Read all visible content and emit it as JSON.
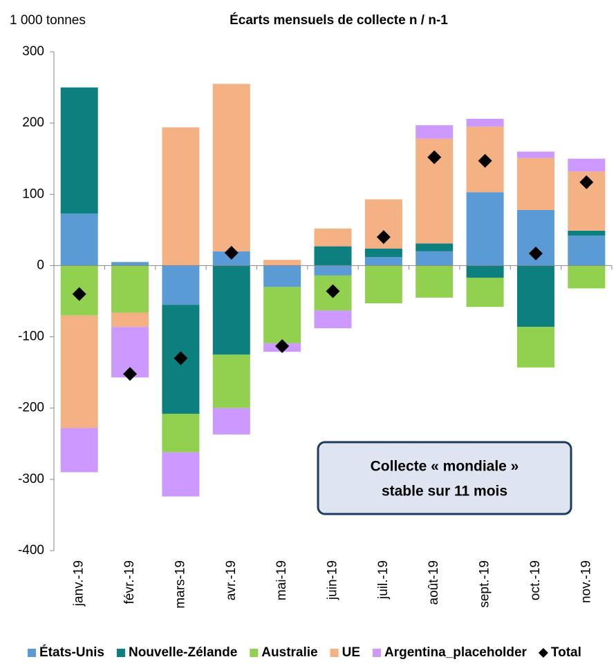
{
  "chart_data": {
    "type": "bar",
    "stacked": true,
    "title": "Écarts mensuels de collecte n / n-1",
    "y_label": "1 000 tonnes",
    "annotation": [
      "Collecte « mondiale »",
      "stable sur 11 mois"
    ],
    "categories": [
      "janv.-19",
      "févr.-19",
      "mars-19",
      "avr.-19",
      "mai-19",
      "juin-19",
      "juil.-19",
      "août-19",
      "sept.-19",
      "oct.-19",
      "nov.-19"
    ],
    "series": [
      {
        "name": "États-Unis",
        "color": "#5b9bd5",
        "values": [
          73,
          5,
          -55,
          20,
          -30,
          -14,
          12,
          20,
          103,
          78,
          42
        ]
      },
      {
        "name": "Nouvelle-Zélande",
        "color": "#0e7f7f",
        "values": [
          177,
          0,
          -153,
          -125,
          0,
          27,
          12,
          11,
          -17,
          -86,
          7
        ]
      },
      {
        "name": "Australie",
        "color": "#92d050",
        "values": [
          -70,
          -66,
          -54,
          -75,
          -79,
          -49,
          -53,
          -45,
          -41,
          -57,
          -32
        ]
      },
      {
        "name": "UE",
        "color": "#f4b183",
        "values": [
          -158,
          -20,
          194,
          235,
          8,
          25,
          69,
          147,
          92,
          73,
          83
        ]
      },
      {
        "name": "Argentina_placeholder",
        "color": "#cc99ff",
        "values": [
          -62,
          -71,
          -62,
          -37,
          -12,
          -25,
          0,
          19,
          11,
          9,
          18
        ]
      },
      {
        "name": "Total",
        "color": "#000000",
        "marker": "diamond",
        "values": [
          -40,
          -152,
          -130,
          18,
          -113,
          -36,
          40,
          152,
          147,
          17,
          117
        ]
      }
    ],
    "ylim": [
      -400,
      300
    ],
    "yticks": [
      -400,
      -300,
      -200,
      -100,
      0,
      100,
      200,
      300
    ],
    "legend": "bottom"
  }
}
